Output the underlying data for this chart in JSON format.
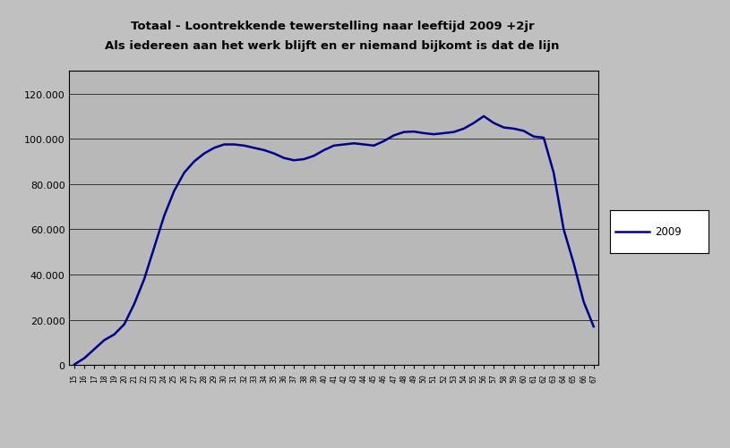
{
  "title_line1": "Totaal - Loontrekkende tewerstelling naar leeftijd 2009 +2jr",
  "title_line2": "Als iedereen aan het werk blijft en er niemand bijkomt is dat de lijn",
  "line_color": "#00008B",
  "line_label": "2009",
  "fig_bg_color": "#C0C0C0",
  "plot_bg_color": "#B8B8B8",
  "ylim": [
    0,
    130000
  ],
  "yticks": [
    0,
    20000,
    40000,
    60000,
    80000,
    100000,
    120000
  ],
  "ytick_labels": [
    "0",
    "20.000",
    "40.000",
    "60.000",
    "80.000",
    "100.000",
    "120.000"
  ],
  "x_labels": [
    "15",
    "16",
    "17",
    "18",
    "19",
    "20",
    "21",
    "22",
    "23",
    "24",
    "25",
    "26",
    "27",
    "28",
    "29",
    "30",
    "31",
    "32",
    "33",
    "34",
    "35",
    "36",
    "37",
    "38",
    "39",
    "40",
    "41",
    "42",
    "43",
    "44",
    "45",
    "46",
    "47",
    "48",
    "49",
    "50",
    "51",
    "52",
    "53",
    "54",
    "55",
    "56",
    "57",
    "58",
    "59",
    "60",
    "61",
    "62",
    "63",
    "64"
  ],
  "values": [
    200,
    3000,
    7000,
    11000,
    13500,
    18000,
    27000,
    38000,
    52000,
    66000,
    77000,
    85000,
    90000,
    93500,
    96000,
    97500,
    97500,
    97000,
    96000,
    95000,
    93500,
    91500,
    90500,
    91000,
    92500,
    95000,
    97000,
    97500,
    98000,
    97500,
    97000,
    99000,
    101500,
    103000,
    103200,
    102500,
    102000,
    102500,
    103000,
    104500,
    107000,
    110000,
    107000,
    105000,
    104500,
    103500,
    101000,
    100500,
    85000,
    60000,
    45000,
    28000,
    17000
  ],
  "x_labels_used": [
    "15",
    "16",
    "17",
    "18",
    "19",
    "20",
    "21",
    "22",
    "23",
    "24",
    "25",
    "26",
    "27",
    "28",
    "29",
    "30",
    "31",
    "32",
    "33",
    "34",
    "35",
    "36",
    "37",
    "38",
    "39",
    "40",
    "41",
    "42",
    "43",
    "44",
    "45",
    "46",
    "47",
    "48",
    "49",
    "50",
    "51",
    "52",
    "53",
    "54",
    "55",
    "56",
    "57",
    "58",
    "59",
    "60",
    "61",
    "62",
    "63",
    "64",
    "65",
    "66",
    "67"
  ]
}
